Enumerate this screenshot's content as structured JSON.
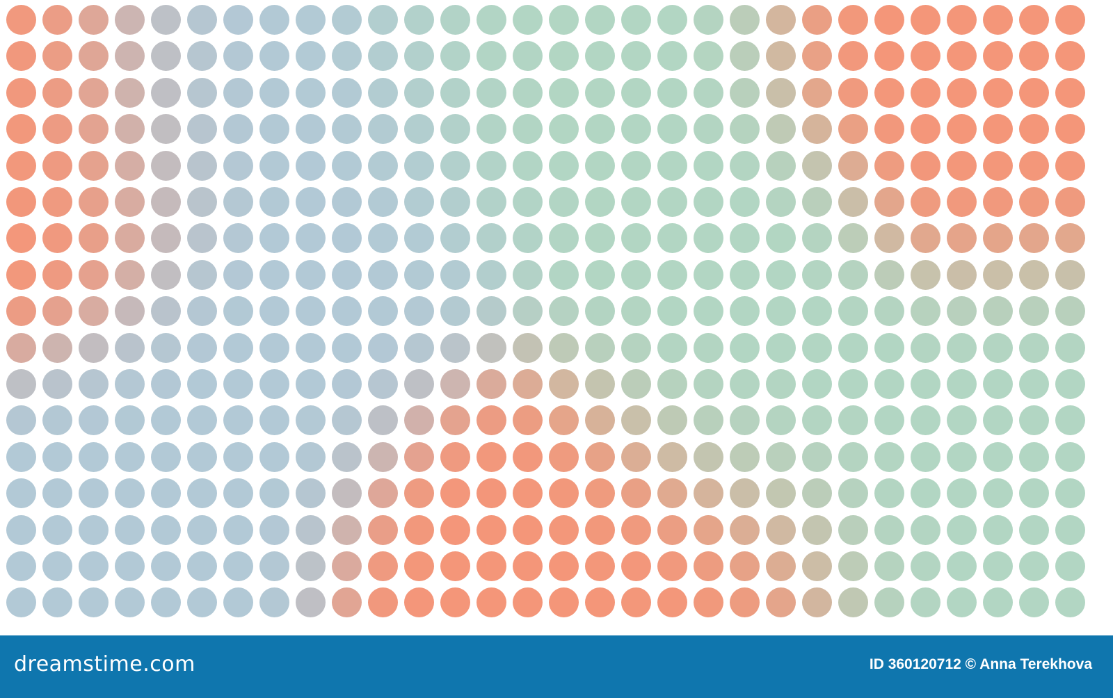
{
  "palette": {
    "blue": "#b2c9d6",
    "green": "#b2d6c3",
    "orange": "#f49679",
    "banner": "#0f76ae",
    "background": "#ffffff"
  },
  "grid": {
    "columns": 30,
    "rows": 17
  },
  "banner": {
    "logo": "dreamstime.com",
    "credit": "ID 360120712 © Anna Terekhova"
  }
}
